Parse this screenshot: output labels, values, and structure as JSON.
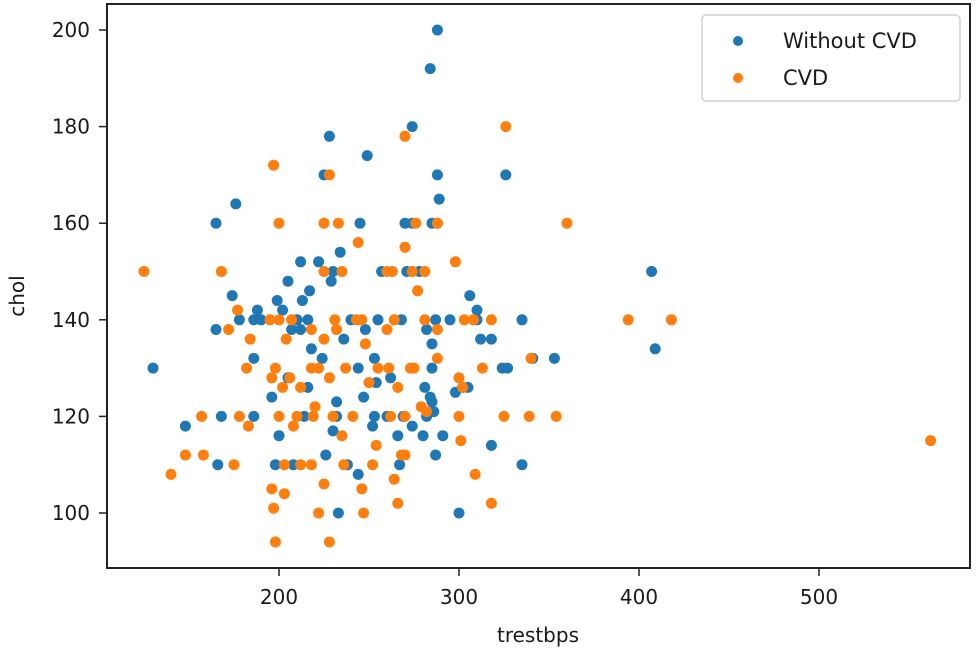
{
  "chart_data": {
    "type": "scatter",
    "title": "",
    "xlabel": "trestbps",
    "ylabel": "chol",
    "xlim": [
      105,
      585
    ],
    "ylim": [
      88,
      205
    ],
    "xticks": [
      200,
      300,
      400,
      500
    ],
    "yticks": [
      100,
      120,
      140,
      160,
      180,
      200
    ],
    "grid": false,
    "legend_position": "upper right",
    "series": [
      {
        "name": "Without CVD",
        "color": "#1f77b4",
        "points": [
          [
            288,
            200
          ],
          [
            284,
            192
          ],
          [
            274,
            180
          ],
          [
            228,
            178
          ],
          [
            249,
            174
          ],
          [
            225,
            170
          ],
          [
            288,
            170
          ],
          [
            326,
            170
          ],
          [
            176,
            164
          ],
          [
            165,
            160
          ],
          [
            289,
            165
          ],
          [
            245,
            160
          ],
          [
            270,
            160
          ],
          [
            274,
            160
          ],
          [
            285,
            160
          ],
          [
            288,
            160
          ],
          [
            234,
            154
          ],
          [
            222,
            152
          ],
          [
            230,
            150
          ],
          [
            212,
            152
          ],
          [
            257,
            150
          ],
          [
            271,
            150
          ],
          [
            278,
            150
          ],
          [
            407,
            150
          ],
          [
            217,
            146
          ],
          [
            174,
            145
          ],
          [
            229,
            148
          ],
          [
            205,
            148
          ],
          [
            199,
            144
          ],
          [
            213,
            144
          ],
          [
            202,
            142
          ],
          [
            188,
            142
          ],
          [
            210,
            140
          ],
          [
            178,
            140
          ],
          [
            186,
            140
          ],
          [
            190,
            140
          ],
          [
            216,
            140
          ],
          [
            240,
            140
          ],
          [
            255,
            140
          ],
          [
            268,
            140
          ],
          [
            287,
            140
          ],
          [
            295,
            140
          ],
          [
            310,
            140
          ],
          [
            335,
            140
          ],
          [
            306,
            145
          ],
          [
            310,
            142
          ],
          [
            409,
            134
          ],
          [
            165,
            138
          ],
          [
            207,
            138
          ],
          [
            212,
            138
          ],
          [
            248,
            138
          ],
          [
            282,
            138
          ],
          [
            312,
            136
          ],
          [
            318,
            136
          ],
          [
            236,
            136
          ],
          [
            218,
            134
          ],
          [
            285,
            135
          ],
          [
            130,
            130
          ],
          [
            186,
            132
          ],
          [
            253,
            132
          ],
          [
            224,
            132
          ],
          [
            341,
            132
          ],
          [
            353,
            132
          ],
          [
            327,
            130
          ],
          [
            324,
            130
          ],
          [
            285,
            130
          ],
          [
            244,
            130
          ],
          [
            262,
            128
          ],
          [
            205,
            128
          ],
          [
            216,
            126
          ],
          [
            254,
            127
          ],
          [
            281,
            126
          ],
          [
            302,
            126
          ],
          [
            284,
            124
          ],
          [
            247,
            124
          ],
          [
            196,
            124
          ],
          [
            232,
            123
          ],
          [
            168,
            120
          ],
          [
            186,
            120
          ],
          [
            214,
            120
          ],
          [
            232,
            120
          ],
          [
            253,
            120
          ],
          [
            260,
            120
          ],
          [
            269,
            120
          ],
          [
            282,
            120
          ],
          [
            286,
            121
          ],
          [
            285,
            123
          ],
          [
            298,
            125
          ],
          [
            305,
            126
          ],
          [
            230,
            117
          ],
          [
            252,
            118
          ],
          [
            266,
            116
          ],
          [
            274,
            118
          ],
          [
            280,
            116
          ],
          [
            291,
            116
          ],
          [
            200,
            116
          ],
          [
            148,
            118
          ],
          [
            166,
            110
          ],
          [
            198,
            110
          ],
          [
            208,
            110
          ],
          [
            226,
            112
          ],
          [
            238,
            110
          ],
          [
            244,
            108
          ],
          [
            267,
            110
          ],
          [
            287,
            112
          ],
          [
            318,
            114
          ],
          [
            335,
            110
          ],
          [
            233,
            100
          ],
          [
            300,
            100
          ]
        ]
      },
      {
        "name": "CVD",
        "color": "#ff7f0e",
        "points": [
          [
            197,
            172
          ],
          [
            270,
            178
          ],
          [
            326,
            180
          ],
          [
            228,
            170
          ],
          [
            200,
            160
          ],
          [
            225,
            160
          ],
          [
            233,
            160
          ],
          [
            276,
            160
          ],
          [
            288,
            160
          ],
          [
            360,
            160
          ],
          [
            125,
            150
          ],
          [
            168,
            150
          ],
          [
            225,
            150
          ],
          [
            235,
            150
          ],
          [
            260,
            150
          ],
          [
            263,
            150
          ],
          [
            274,
            150
          ],
          [
            281,
            150
          ],
          [
            298,
            152
          ],
          [
            244,
            156
          ],
          [
            270,
            155
          ],
          [
            177,
            142
          ],
          [
            195,
            140
          ],
          [
            200,
            140
          ],
          [
            207,
            140
          ],
          [
            231,
            140
          ],
          [
            243,
            140
          ],
          [
            246,
            140
          ],
          [
            264,
            140
          ],
          [
            281,
            140
          ],
          [
            303,
            140
          ],
          [
            308,
            140
          ],
          [
            318,
            140
          ],
          [
            394,
            140
          ],
          [
            418,
            140
          ],
          [
            172,
            138
          ],
          [
            218,
            138
          ],
          [
            260,
            138
          ],
          [
            277,
            146
          ],
          [
            184,
            136
          ],
          [
            204,
            136
          ],
          [
            225,
            136
          ],
          [
            232,
            138
          ],
          [
            248,
            135
          ],
          [
            288,
            138
          ],
          [
            182,
            130
          ],
          [
            198,
            130
          ],
          [
            206,
            128
          ],
          [
            218,
            130
          ],
          [
            222,
            130
          ],
          [
            237,
            130
          ],
          [
            255,
            130
          ],
          [
            261,
            130
          ],
          [
            273,
            130
          ],
          [
            275,
            130
          ],
          [
            313,
            130
          ],
          [
            340,
            132
          ],
          [
            196,
            128
          ],
          [
            202,
            126
          ],
          [
            212,
            126
          ],
          [
            228,
            128
          ],
          [
            250,
            127
          ],
          [
            266,
            126
          ],
          [
            300,
            128
          ],
          [
            302,
            126
          ],
          [
            288,
            132
          ],
          [
            157,
            120
          ],
          [
            178,
            120
          ],
          [
            200,
            120
          ],
          [
            210,
            120
          ],
          [
            219,
            120
          ],
          [
            230,
            120
          ],
          [
            241,
            120
          ],
          [
            262,
            120
          ],
          [
            270,
            120
          ],
          [
            282,
            121
          ],
          [
            300,
            120
          ],
          [
            325,
            120
          ],
          [
            339,
            120
          ],
          [
            354,
            120
          ],
          [
            183,
            118
          ],
          [
            208,
            118
          ],
          [
            220,
            122
          ],
          [
            235,
            116
          ],
          [
            254,
            114
          ],
          [
            270,
            112
          ],
          [
            279,
            122
          ],
          [
            148,
            112
          ],
          [
            158,
            112
          ],
          [
            175,
            110
          ],
          [
            203,
            110
          ],
          [
            212,
            110
          ],
          [
            218,
            110
          ],
          [
            236,
            110
          ],
          [
            252,
            110
          ],
          [
            268,
            112
          ],
          [
            301,
            115
          ],
          [
            309,
            108
          ],
          [
            140,
            108
          ],
          [
            196,
            105
          ],
          [
            203,
            104
          ],
          [
            225,
            106
          ],
          [
            246,
            105
          ],
          [
            264,
            107
          ],
          [
            266,
            102
          ],
          [
            318,
            102
          ],
          [
            562,
            115
          ],
          [
            197,
            101
          ],
          [
            222,
            100
          ],
          [
            247,
            100
          ],
          [
            198,
            94
          ],
          [
            228,
            94
          ]
        ]
      }
    ]
  },
  "legend": {
    "items": [
      {
        "label": "Without CVD",
        "color": "#1f77b4"
      },
      {
        "label": "CVD",
        "color": "#ff7f0e"
      }
    ]
  },
  "axes": {
    "xlabel": "trestbps",
    "ylabel": "chol",
    "xtick_labels": [
      "200",
      "300",
      "400",
      "500"
    ],
    "ytick_labels": [
      "100",
      "120",
      "140",
      "160",
      "180",
      "200"
    ]
  }
}
